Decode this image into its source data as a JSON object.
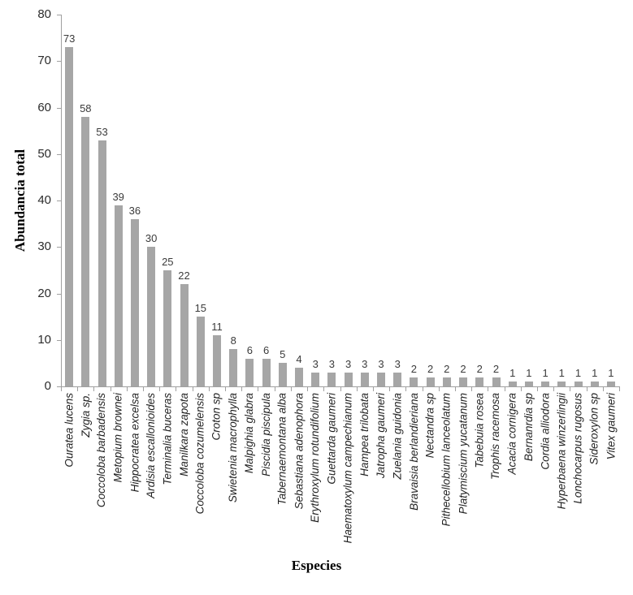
{
  "chart_data": {
    "type": "bar",
    "title": "",
    "xlabel": "Especies",
    "ylabel": "Abundancia total",
    "categories": [
      "Ouratea lucens",
      "Zygia sp.",
      "Coccoloba barbadensis",
      "Metopium brownei",
      "Hippocratea excelsa",
      "Ardisia escallonioides",
      "Terminalia buceras",
      "Manilkara zapota",
      "Coccoloba cozumelensis",
      "Croton sp",
      "Swietenia macrophylla",
      "Malpighia glabra",
      "Piscidia piscipula",
      "Tabernaemontana alba",
      "Sebastiana adenophora",
      "Erythroxylum rotundifolium",
      "Guettarda gaumeri",
      "Haematoxylum campechianum",
      "Hampea trilobata",
      "Jatropha gaumeri",
      "Zuelania guidonia",
      "Bravaisia berlandieriana",
      "Nectandra sp",
      "Pithecellobium lanceolatum",
      "Platymiscium yucatanum",
      "Tabebuia rosea",
      "Trophis racemosa",
      "Acacia cornigera",
      "Bernanrdia sp",
      "Cordia alliodora",
      "Hyperbaena winzerlingii",
      "Lonchocarpus rugosus",
      "Sideroxylon sp",
      "Vitex gaumeri"
    ],
    "values": [
      73,
      58,
      53,
      39,
      36,
      30,
      25,
      22,
      15,
      11,
      8,
      6,
      6,
      5,
      4,
      3,
      3,
      3,
      3,
      3,
      3,
      2,
      2,
      2,
      2,
      2,
      2,
      1,
      1,
      1,
      1,
      1,
      1,
      1
    ],
    "ylim": [
      0,
      80
    ],
    "yticks": [
      0,
      10,
      20,
      30,
      40,
      50,
      60,
      70,
      80
    ],
    "grid": false,
    "legend": "none",
    "value_labels_shown": true,
    "bar_color": "#a6a6a6",
    "axis_color": "#a0a0a0",
    "value_label_color": "#3b3b3b",
    "tick_label_color": "#2b2b2b"
  }
}
